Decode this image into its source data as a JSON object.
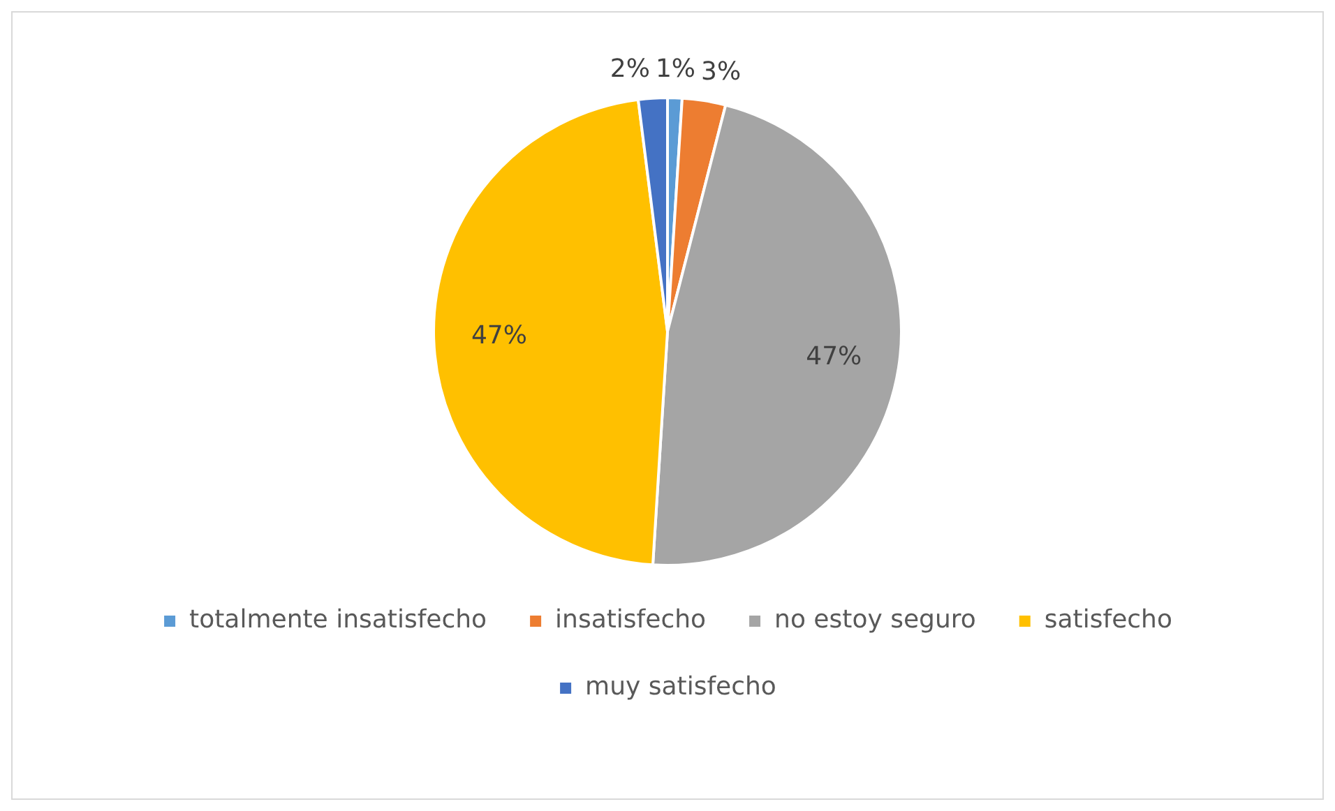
{
  "chart_data": {
    "type": "pie",
    "categories": [
      "totalmente insatisfecho",
      "insatisfecho",
      "no estoy seguro",
      "satisfecho",
      "muy satisfecho"
    ],
    "values": [
      1,
      3,
      47,
      47,
      2
    ],
    "colors": [
      "#5b9bd5",
      "#ed7d31",
      "#a5a5a5",
      "#ffc000",
      "#4472c4"
    ],
    "value_labels": [
      "1%",
      "3%",
      "47%",
      "47%",
      "2%"
    ],
    "legend": "bottom"
  }
}
